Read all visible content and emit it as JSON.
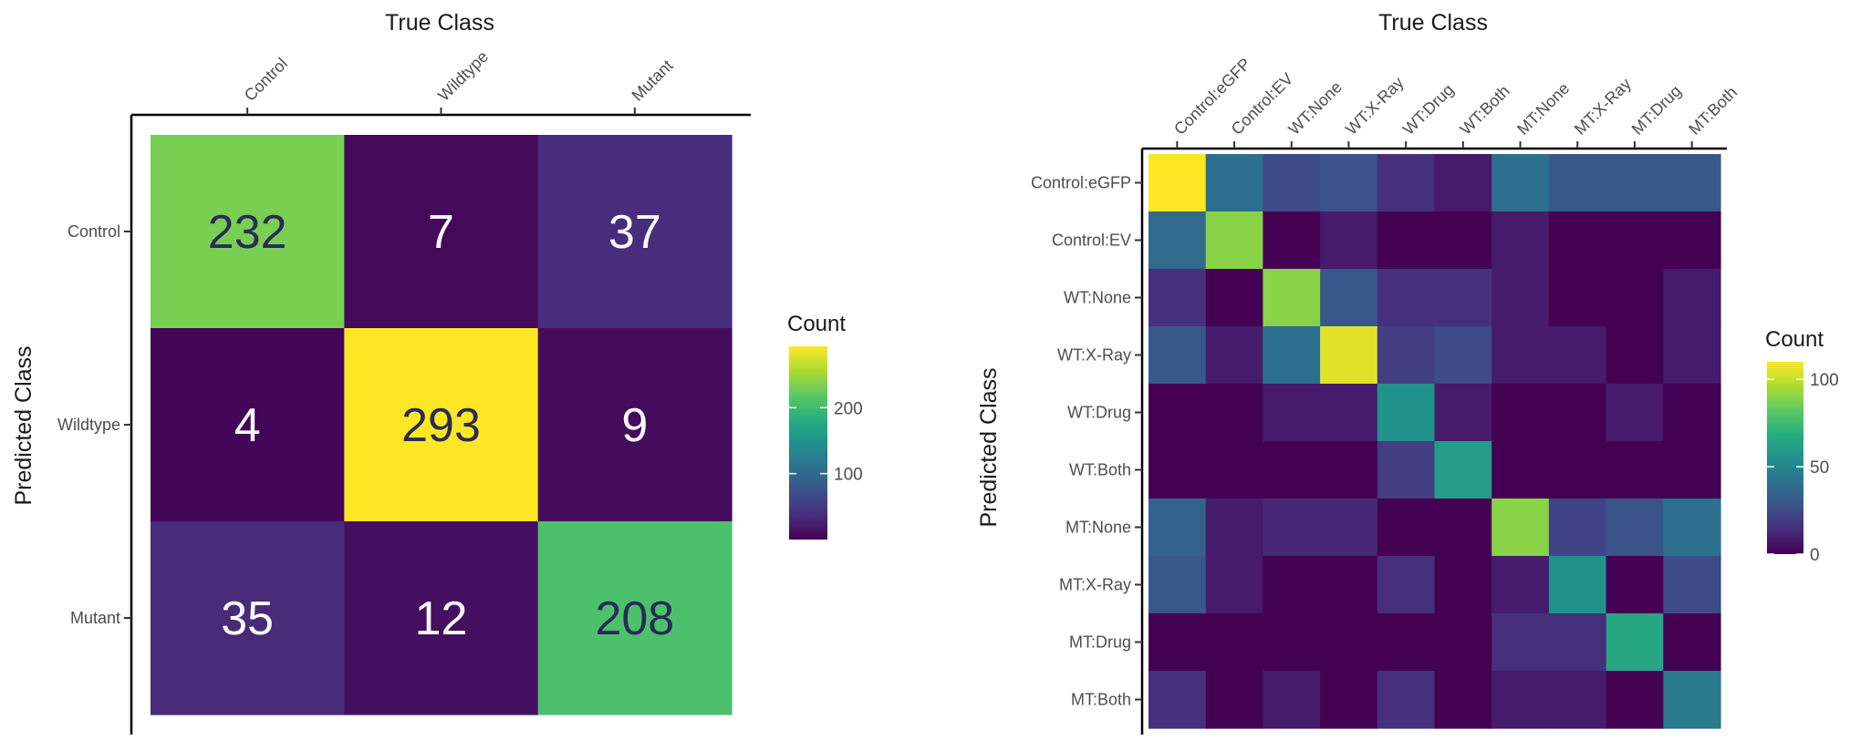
{
  "chart_data": [
    {
      "type": "heatmap",
      "xlabel": "True Class",
      "ylabel": "Predicted Class",
      "x_categories": [
        "Control",
        "Wildtype",
        "Mutant"
      ],
      "y_categories": [
        "Control",
        "Wildtype",
        "Mutant"
      ],
      "values": [
        [
          232,
          7,
          37
        ],
        [
          4,
          293,
          9
        ],
        [
          35,
          12,
          208
        ]
      ],
      "show_cell_labels": true,
      "legend": {
        "title": "Count",
        "ticks": [
          200,
          100
        ],
        "tick_labels": [
          "200",
          "100"
        ],
        "range": [
          0,
          293
        ],
        "colormap": "viridis",
        "placement": "right"
      },
      "grid": false
    },
    {
      "type": "heatmap",
      "xlabel": "True Class",
      "ylabel": "Predicted Class",
      "x_categories": [
        "Control:eGFP",
        "Control:EV",
        "WT:None",
        "WT:X-Ray",
        "WT:Drug",
        "WT:Both",
        "MT:None",
        "MT:X-Ray",
        "MT:Drug",
        "MT:Both"
      ],
      "y_categories": [
        "Control:eGFP",
        "Control:EV",
        "WT:None",
        "WT:X-Ray",
        "WT:Drug",
        "WT:Both",
        "MT:None",
        "MT:X-Ray",
        "MT:Drug",
        "MT:Both"
      ],
      "values": [
        [
          110,
          40,
          25,
          28,
          15,
          8,
          40,
          30,
          30,
          30
        ],
        [
          38,
          90,
          0,
          8,
          0,
          0,
          8,
          0,
          0,
          0
        ],
        [
          15,
          0,
          90,
          30,
          15,
          15,
          8,
          0,
          0,
          8
        ],
        [
          30,
          8,
          40,
          105,
          20,
          25,
          8,
          8,
          0,
          8
        ],
        [
          0,
          0,
          8,
          8,
          55,
          8,
          0,
          0,
          8,
          0
        ],
        [
          0,
          0,
          0,
          0,
          20,
          60,
          0,
          0,
          0,
          0
        ],
        [
          35,
          8,
          12,
          12,
          0,
          0,
          90,
          22,
          28,
          40
        ],
        [
          30,
          8,
          0,
          0,
          15,
          0,
          8,
          55,
          0,
          25
        ],
        [
          0,
          0,
          0,
          0,
          0,
          0,
          15,
          15,
          65,
          0
        ],
        [
          15,
          0,
          8,
          0,
          15,
          0,
          8,
          8,
          0,
          45
        ]
      ],
      "show_cell_labels": false,
      "legend": {
        "title": "Count",
        "ticks": [
          100,
          50,
          0
        ],
        "tick_labels": [
          "100",
          "50",
          "0"
        ],
        "range": [
          0,
          110
        ],
        "colormap": "viridis",
        "placement": "right"
      },
      "grid": false
    }
  ]
}
